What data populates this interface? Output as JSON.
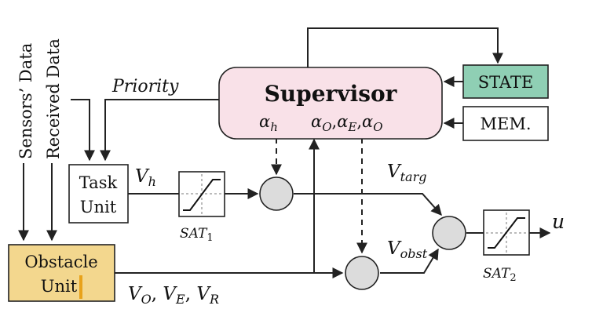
{
  "diagram": {
    "supervisor": {
      "title": "Supervisor",
      "params_left": "α",
      "params_left_sub": "h",
      "params_right": [
        {
          "sym": "α",
          "sub": "O"
        },
        {
          "sym": "α",
          "sub": "E"
        },
        {
          "sym": "α",
          "sub": "O"
        }
      ]
    },
    "state_label": "STATE",
    "mem_label": "MEM.",
    "task_unit": {
      "line1": "Task",
      "line2": "Unit"
    },
    "obstacle_unit": {
      "line1": "Obstacle",
      "line2": "Unit"
    },
    "inputs": {
      "sensors": "Sensors’ Data",
      "received": "Received Data"
    },
    "labels": {
      "priority": "Priority",
      "v_h": {
        "sym": "V",
        "sub": "h"
      },
      "v_targ": {
        "sym": "V",
        "sub": "targ"
      },
      "v_obst": {
        "sym": "V",
        "sub": "obst"
      },
      "v_oer": [
        {
          "sym": "V",
          "sub": "O"
        },
        {
          "sym": "V",
          "sub": "E"
        },
        {
          "sym": "V",
          "sub": "R"
        }
      ],
      "sat1": {
        "sym": "SAT",
        "sub": "1"
      },
      "sat2": {
        "sym": "SAT",
        "sub": "2"
      },
      "output": "u"
    },
    "colors": {
      "supervisor_fill": "#f9e1e8",
      "state_fill": "#8fcfb4",
      "obstacle_fill": "#f3d78e",
      "junction_fill": "#dcdcdc",
      "cursor": "#e8a21a"
    }
  }
}
